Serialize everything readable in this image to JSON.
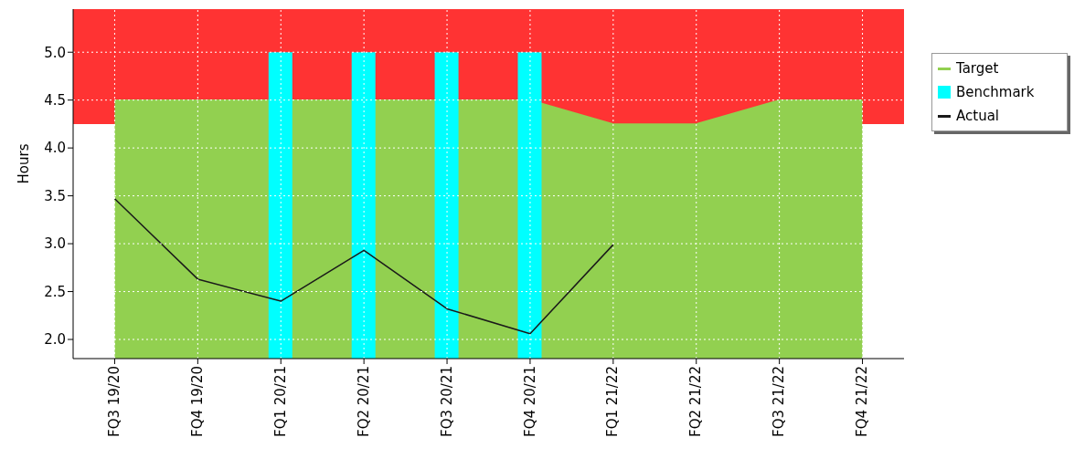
{
  "chart_data": {
    "type": "line",
    "ylabel": "Hours",
    "categories": [
      "FQ3 19/20",
      "FQ4 19/20",
      "FQ1 20/21",
      "FQ2 20/21",
      "FQ3 20/21",
      "FQ4 20/21",
      "FQ1 21/22",
      "FQ2 21/22",
      "FQ3 21/22",
      "FQ4 21/22"
    ],
    "series": [
      {
        "name": "Target",
        "type": "area",
        "color": "#92d050",
        "values": [
          4.5,
          4.5,
          4.5,
          4.5,
          4.5,
          4.5,
          4.25,
          4.25,
          4.5,
          4.5
        ]
      },
      {
        "name": "Benchmark",
        "type": "bar",
        "color": "#00ffff",
        "values": [
          null,
          null,
          5.0,
          5.0,
          5.0,
          5.0,
          null,
          null,
          null,
          null
        ]
      },
      {
        "name": "Actual",
        "color": "#1a1a1a",
        "values": [
          3.47,
          2.63,
          2.4,
          2.93,
          2.32,
          2.06,
          2.99,
          null,
          null,
          null
        ]
      }
    ],
    "bands": [
      {
        "axis": "y",
        "from": 4.25,
        "to": 5.45,
        "color": "#ff3333"
      }
    ],
    "ylim": [
      1.8,
      5.45
    ],
    "yticks": [
      {
        "value": 2,
        "label": "2.0"
      },
      2.5,
      {
        "value": 3,
        "label": "3.0"
      },
      3.5,
      {
        "value": 4,
        "label": "4.0"
      },
      4.5,
      {
        "value": 5,
        "label": "5.0"
      }
    ],
    "grid": true,
    "legend": "top right",
    "marker": "none",
    "line_style": "solid"
  }
}
